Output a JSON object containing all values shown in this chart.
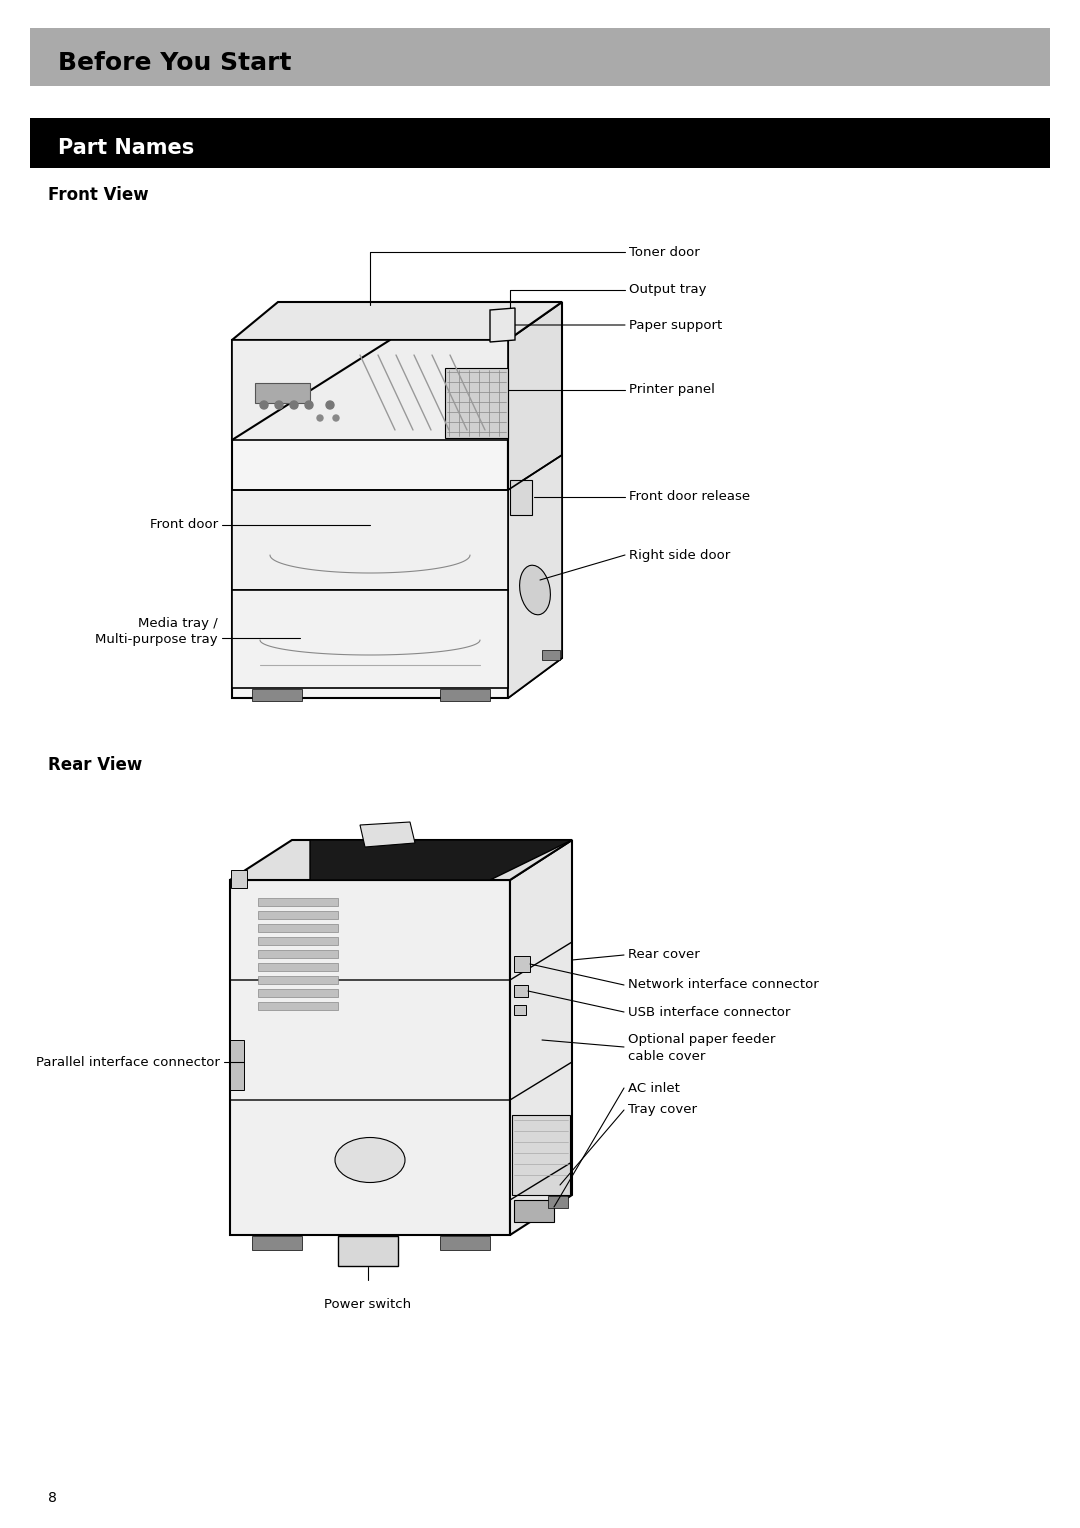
{
  "page_bg": "#ffffff",
  "header1_bg": "#aaaaaa",
  "header1_text": "Before You Start",
  "header2_bg": "#000000",
  "header2_text": "Part Names",
  "header2_text_color": "#ffffff",
  "section1_title": "Front View",
  "section2_title": "Rear View",
  "page_number": "8",
  "font_size_label": 9.5,
  "font_size_header1": 18,
  "font_size_header2": 15,
  "font_size_section": 12
}
